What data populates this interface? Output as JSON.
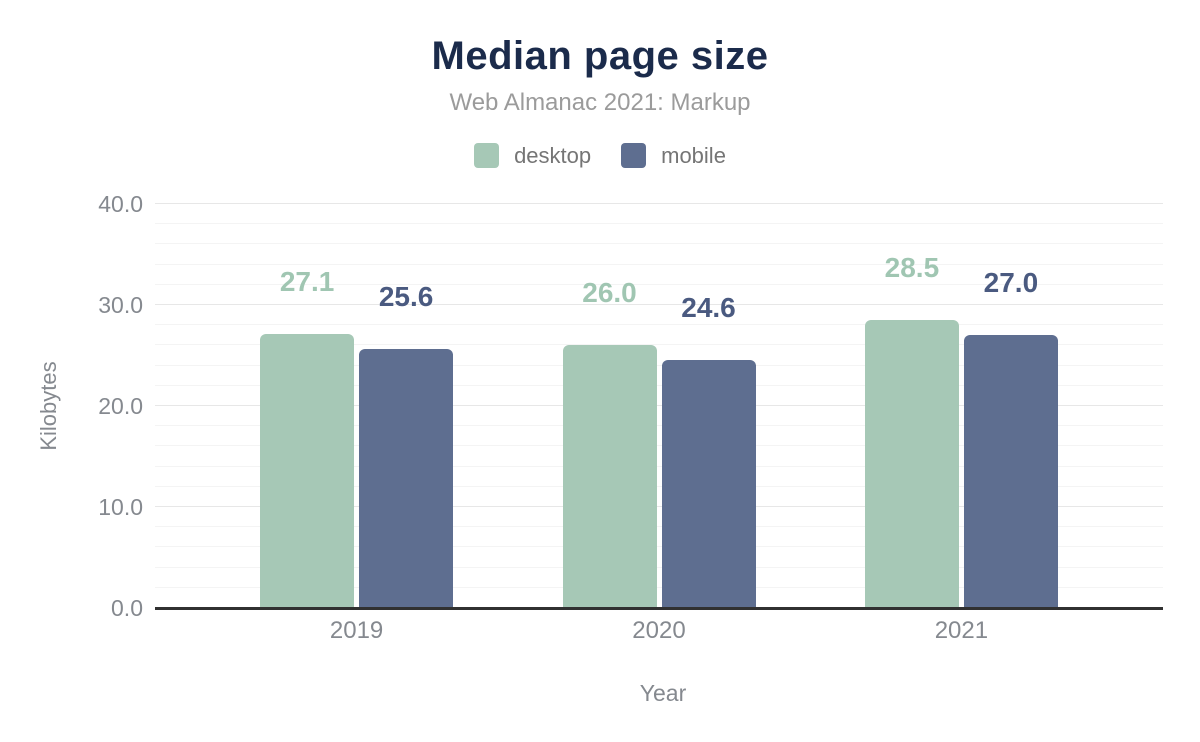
{
  "header": {
    "title": "Median page size",
    "subtitle": "Web Almanac 2021: Markup"
  },
  "legend": [
    {
      "label": "desktop",
      "color": "#a6c8b6"
    },
    {
      "label": "mobile",
      "color": "#5e6e90"
    }
  ],
  "chart_data": {
    "type": "bar",
    "title": "Median page size",
    "subtitle": "Web Almanac 2021: Markup",
    "categories": [
      "2019",
      "2020",
      "2021"
    ],
    "series": [
      {
        "name": "desktop",
        "color": "#a6c8b6",
        "label_color": "#a0c6b2",
        "values": [
          27.1,
          26.0,
          28.5
        ]
      },
      {
        "name": "mobile",
        "color": "#5e6e90",
        "label_color": "#4a5a80",
        "values": [
          25.6,
          24.6,
          27.0
        ]
      }
    ],
    "xlabel": "Year",
    "ylabel": "Kilobytes",
    "ylim": [
      0,
      40
    ],
    "y_major_ticks": [
      0,
      10,
      20,
      30,
      40
    ],
    "y_tick_labels": [
      "0.0",
      "10.0",
      "20.0",
      "30.0",
      "40.0"
    ],
    "y_minor_step": 2,
    "grid": true,
    "legend_position": "top",
    "value_labels": true,
    "axis_color": "#313131",
    "text_color": "#85898f",
    "title_color": "#1b2b4b"
  }
}
